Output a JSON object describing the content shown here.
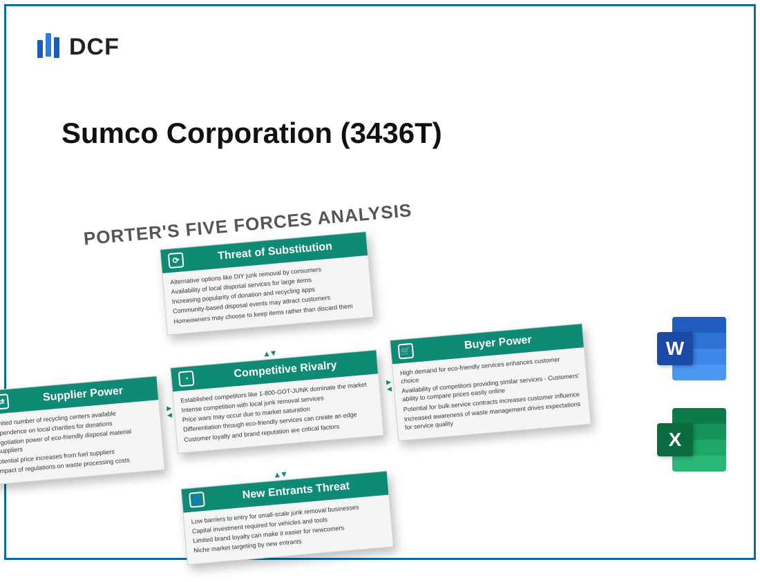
{
  "brand": {
    "text": "DCF"
  },
  "title": "Sumco Corporation (3436T)",
  "diagram": {
    "heading": "PORTER'S FIVE FORCES ANALYSIS",
    "accent_color": "#0f8a74",
    "cards": {
      "substitution": {
        "title": "Threat of Substitution",
        "icon": "⟳",
        "points": [
          "Alternative options like DIY junk removal by consumers",
          "Availability of local disposal services for large items",
          "Increasing popularity of donation and recycling apps",
          "Community-based disposal events may attract customers",
          "Homeowners may choose to keep items rather than discard them"
        ]
      },
      "rivalry": {
        "title": "Competitive Rivalry",
        "icon": "◔",
        "points": [
          "Established competitors like 1-800-GOT-JUNK dominate the market",
          "Intense competition with local junk removal services",
          "Price wars may occur due to market saturation",
          "Differentiation through eco-friendly services can create an edge",
          "Customer loyalty and brand reputation are critical factors"
        ]
      },
      "supplier": {
        "title": "Supplier Power",
        "icon": "⇄",
        "points": [
          "imited number of recycling centers available",
          "ependence on local charities for donations",
          "egotiation power of eco-friendly disposal material suppliers",
          "otential price increases from fuel suppliers",
          "mpact of regulations on waste processing costs"
        ]
      },
      "buyer": {
        "title": "Buyer Power",
        "icon": "🛒",
        "points": [
          "High demand for eco-friendly services enhances customer choice",
          "Availability of competitors providing similar services - Customers' ability to compare prices easily online",
          "Potential for bulk service contracts increases customer influence",
          "Increased awareness of waste management drives expectations for service quality"
        ]
      },
      "entrants": {
        "title": "New Entrants Threat",
        "icon": "👤",
        "points": [
          "Low barriers to entry for small-scale junk removal businesses",
          "Capital investment required for vehicles and tools",
          "Limited brand loyalty can make it easier for newcomers",
          "Niche market targeting by new entrants"
        ]
      }
    }
  },
  "apps": {
    "word": "W",
    "excel": "X"
  }
}
